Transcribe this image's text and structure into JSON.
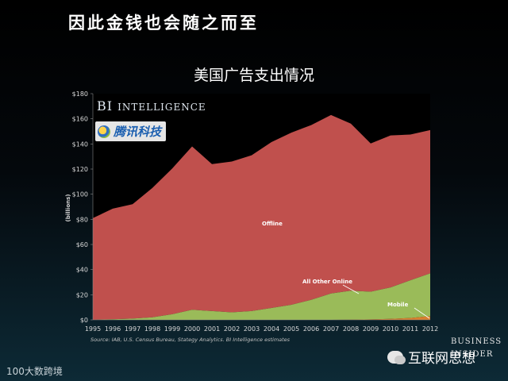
{
  "slide_title": "因此金钱也会随之而至",
  "chart_data": {
    "type": "area",
    "title": "美国广告支出情况",
    "ylabel": "(billions)",
    "x": [
      1995,
      1996,
      1997,
      1998,
      1999,
      2000,
      2001,
      2002,
      2003,
      2004,
      2005,
      2006,
      2007,
      2008,
      2009,
      2010,
      2011,
      2012
    ],
    "x_tick_labels": [
      "1995",
      "1996",
      "1997",
      "1998",
      "1999",
      "2000",
      "2001",
      "2002",
      "2003",
      "2004",
      "2005",
      "2006",
      "2007",
      "2008",
      "2009",
      "2010",
      "2011",
      "2012"
    ],
    "y_tick_labels": [
      "$0",
      "$20",
      "$40",
      "$60",
      "$80",
      "$100",
      "$120",
      "$140",
      "$160",
      "$180"
    ],
    "ylim": [
      0,
      180
    ],
    "grid": false,
    "stacked": true,
    "series": [
      {
        "name": "Mobile",
        "color": "#d9802f",
        "values": [
          0,
          0,
          0,
          0,
          0,
          0,
          0,
          0,
          0,
          0,
          0,
          0,
          0,
          0.2,
          0.4,
          0.8,
          1.5,
          3
        ]
      },
      {
        "name": "All Other Online",
        "color": "#9abb59",
        "values": [
          0,
          0.5,
          1,
          2,
          4.5,
          8,
          7,
          6,
          7,
          9.5,
          12,
          16,
          21,
          23,
          22,
          25,
          30,
          34
        ]
      },
      {
        "name": "Offline",
        "color": "#c0504d",
        "values": [
          81,
          88,
          91,
          103,
          116,
          130,
          117,
          120,
          124,
          132,
          137,
          139,
          142,
          133,
          118,
          121,
          116,
          114
        ]
      }
    ],
    "source": "Source: IAB, U.S. Census Bureau, Stategy Analytics. BI Intelligence estimates"
  },
  "logos": {
    "bi_intelligence_first": "BI",
    "bi_intelligence_rest": "INTELLIGENCE",
    "tencent": "腾讯科技",
    "business_insider_top": "BUSINESS",
    "business_insider_bottom": "INSIDER"
  },
  "wechat_account": "互联网思想",
  "brand": "100大数跨境"
}
